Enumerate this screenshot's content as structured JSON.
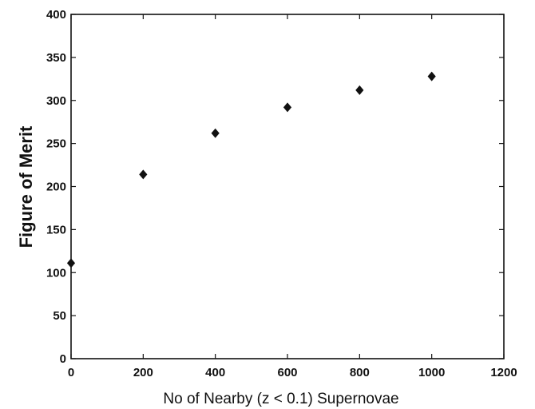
{
  "chart_data": {
    "type": "scatter",
    "title": "",
    "xlabel": "No of Nearby (z < 0.1) Supernovae",
    "ylabel": "Figure of Merit",
    "xlim": [
      0,
      1200
    ],
    "ylim": [
      0,
      400
    ],
    "x_ticks": [
      "0",
      "200",
      "400",
      "600",
      "800",
      "1000",
      "1200"
    ],
    "y_ticks": [
      "0",
      "50",
      "100",
      "150",
      "200",
      "250",
      "300",
      "350",
      "400"
    ],
    "grid": false,
    "legend": "none",
    "marker": "diamond",
    "marker_color": "#111111",
    "series": [
      {
        "x": [
          0,
          200,
          400,
          600,
          800,
          1000
        ],
        "y": [
          111,
          214,
          262,
          292,
          312,
          328
        ]
      }
    ]
  }
}
